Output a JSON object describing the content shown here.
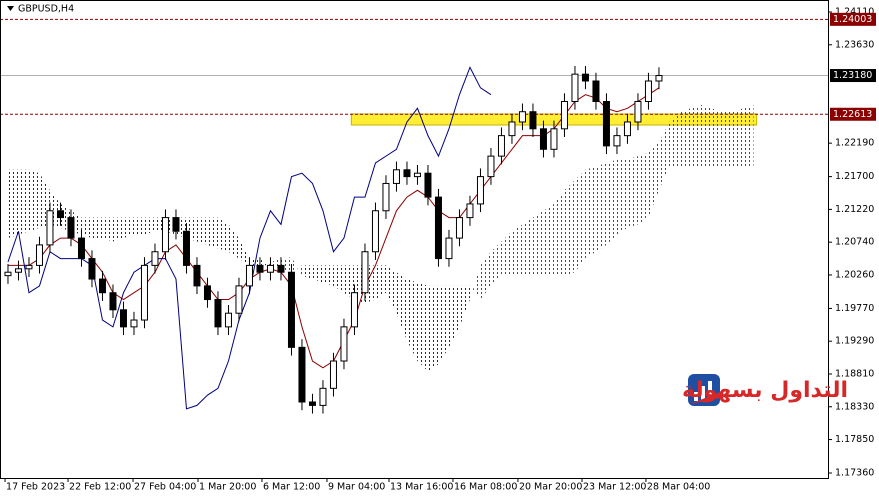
{
  "chart_data": {
    "type": "candlestick",
    "title": "GBPUSD,H4",
    "watermark": "التداول بسهولة",
    "xlim": [
      -0.76,
      78.1
    ],
    "ylim": [
      1.17287,
      1.24286
    ],
    "xticks": [
      {
        "value": -0.28,
        "label": "17 Feb 2023"
      },
      {
        "value": 5.72,
        "label": "22 Feb 12:00"
      },
      {
        "value": 11.91,
        "label": "27 Feb 04:00"
      },
      {
        "value": 18.1,
        "label": "1 Mar 20:00"
      },
      {
        "value": 24.19,
        "label": "6 Mar 12:00"
      },
      {
        "value": 30.38,
        "label": "9 Mar 04:00"
      },
      {
        "value": 36.29,
        "label": "13 Mar 16:00"
      },
      {
        "value": 42.38,
        "label": "16 Mar 08:00"
      },
      {
        "value": 48.57,
        "label": "20 Mar 20:00"
      },
      {
        "value": 54.67,
        "label": "23 Mar 12:00"
      },
      {
        "value": 60.76,
        "label": "28 Mar 04:00"
      }
    ],
    "yticks": [
      {
        "value": 1.2411,
        "label": "1.24110"
      },
      {
        "value": 1.2363,
        "label": "1.23630"
      },
      {
        "value": 1.2219,
        "label": "1.22190"
      },
      {
        "value": 1.217,
        "label": "1.21700"
      },
      {
        "value": 1.2122,
        "label": "1.21220"
      },
      {
        "value": 1.2074,
        "label": "1.20740"
      },
      {
        "value": 1.2026,
        "label": "1.20260"
      },
      {
        "value": 1.1977,
        "label": "1.19770"
      },
      {
        "value": 1.1929,
        "label": "1.19290"
      },
      {
        "value": 1.1881,
        "label": "1.18810"
      },
      {
        "value": 1.1833,
        "label": "1.18330"
      },
      {
        "value": 1.1785,
        "label": "1.17850"
      },
      {
        "value": 1.1736,
        "label": "1.17360"
      }
    ],
    "price_lines": [
      {
        "value": 1.24003,
        "color": "#8b0000",
        "dashed": true
      },
      {
        "value": 1.2318,
        "label": "1.23180",
        "color": "#000000",
        "dashed": false
      },
      {
        "value": 1.22613,
        "color": "#8b0000",
        "dashed": true
      }
    ],
    "zone": {
      "x": [
        32.7,
        71.3
      ],
      "y": [
        1.22456,
        1.22617
      ],
      "color": "#ffee33"
    },
    "candles": {
      "open": [
        1.2025,
        1.203,
        1.2035,
        1.204,
        1.207,
        1.212,
        1.211,
        1.208,
        1.205,
        1.202,
        1.2,
        1.1975,
        1.195,
        1.196,
        1.204,
        1.206,
        1.211,
        1.209,
        1.204,
        1.201,
        1.199,
        1.195,
        1.197,
        1.201,
        1.204,
        1.203,
        1.204,
        1.203,
        1.192,
        1.184,
        1.1835,
        1.186,
        1.19,
        1.195,
        1.2,
        1.206,
        1.212,
        1.216,
        1.218,
        1.217,
        1.2175,
        1.214,
        1.205,
        1.208,
        1.211,
        1.213,
        1.217,
        1.22,
        1.223,
        1.225,
        1.2265,
        1.224,
        1.221,
        1.224,
        1.228,
        1.232,
        1.231,
        1.228,
        1.2215,
        1.223,
        1.225,
        1.228,
        1.231
      ],
      "high": [
        1.2042,
        1.2047,
        1.2052,
        1.2082,
        1.2132,
        1.2132,
        1.2122,
        1.2092,
        1.2062,
        1.2032,
        1.2012,
        1.1987,
        1.1972,
        1.2052,
        1.2072,
        1.2122,
        1.2122,
        1.2102,
        1.2052,
        1.2022,
        1.2002,
        1.1982,
        1.2022,
        1.2052,
        1.2052,
        1.2052,
        1.2052,
        1.2042,
        1.1932,
        1.1852,
        1.1872,
        1.1912,
        1.1962,
        1.2012,
        1.2072,
        1.2132,
        1.2172,
        1.2192,
        1.2192,
        1.2187,
        1.2187,
        1.2152,
        1.2092,
        1.2122,
        1.2142,
        1.2182,
        1.2212,
        1.2242,
        1.2262,
        1.2277,
        1.2277,
        1.2252,
        1.2252,
        1.2292,
        1.2332,
        1.2332,
        1.2322,
        1.2292,
        1.2242,
        1.2262,
        1.2292,
        1.2322,
        1.233
      ],
      "low": [
        1.2013,
        1.2018,
        1.2023,
        1.2028,
        1.2058,
        1.2098,
        1.2068,
        1.2038,
        1.2008,
        1.1988,
        1.1963,
        1.1938,
        1.1938,
        1.1948,
        1.2028,
        1.2048,
        1.2078,
        1.2028,
        1.1998,
        1.1978,
        1.1938,
        1.1938,
        1.1958,
        1.1998,
        1.2018,
        1.2018,
        1.2018,
        1.1908,
        1.1828,
        1.1823,
        1.1823,
        1.1848,
        1.1888,
        1.1938,
        1.1988,
        1.2048,
        1.2108,
        1.2148,
        1.2158,
        1.2158,
        1.2128,
        1.2038,
        1.2038,
        1.2068,
        1.2098,
        1.2118,
        1.2158,
        1.2188,
        1.2218,
        1.2238,
        1.2228,
        1.2198,
        1.2198,
        1.2228,
        1.2268,
        1.2298,
        1.2268,
        1.2203,
        1.2203,
        1.2218,
        1.2238,
        1.2268,
        1.2298
      ],
      "close": [
        1.203,
        1.2035,
        1.204,
        1.207,
        1.212,
        1.211,
        1.208,
        1.205,
        1.202,
        1.2,
        1.1975,
        1.195,
        1.196,
        1.204,
        1.206,
        1.211,
        1.209,
        1.204,
        1.201,
        1.199,
        1.195,
        1.197,
        1.201,
        1.204,
        1.203,
        1.204,
        1.203,
        1.192,
        1.184,
        1.1835,
        1.186,
        1.19,
        1.195,
        1.2,
        1.206,
        1.212,
        1.216,
        1.218,
        1.217,
        1.2175,
        1.214,
        1.205,
        1.208,
        1.211,
        1.213,
        1.217,
        1.22,
        1.223,
        1.225,
        1.2265,
        1.224,
        1.221,
        1.224,
        1.228,
        1.232,
        1.231,
        1.228,
        1.2215,
        1.223,
        1.225,
        1.228,
        1.231,
        1.2318
      ],
      "up_color": "#ffffff",
      "down_color": "#000000"
    },
    "series": [
      {
        "color": "#8b0000",
        "values": [
          1.204,
          1.204,
          1.204,
          1.205,
          1.207,
          1.208,
          1.208,
          1.207,
          1.205,
          1.203,
          1.2,
          1.199,
          1.2,
          1.201,
          1.203,
          1.206,
          1.207,
          1.205,
          1.203,
          1.201,
          1.199,
          1.199,
          1.2,
          1.202,
          1.203,
          1.2035,
          1.203,
          1.201,
          1.195,
          1.19,
          1.189,
          1.19,
          1.193,
          1.196,
          1.201,
          1.204,
          1.208,
          1.212,
          1.214,
          1.215,
          1.214,
          1.212,
          1.211,
          1.211,
          1.213,
          1.215,
          1.217,
          1.219,
          1.221,
          1.223,
          1.223,
          1.223,
          1.224,
          1.226,
          1.228,
          1.229,
          1.2285,
          1.227,
          1.2265,
          1.227,
          1.228,
          1.229,
          1.23
        ]
      },
      {
        "color": "#000080",
        "values": [
          1.2045,
          1.209,
          1.2,
          1.201,
          1.206,
          1.205,
          1.205,
          1.205,
          1.204,
          1.196,
          1.195,
          1.2,
          1.203,
          1.204,
          1.205,
          1.205,
          1.202,
          1.183,
          1.1835,
          1.185,
          1.186,
          1.19,
          1.196,
          1.2,
          1.208,
          1.212,
          1.21,
          1.217,
          1.2175,
          1.216,
          1.212,
          1.206,
          1.208,
          1.214,
          1.214,
          1.219,
          1.22,
          1.221,
          1.225,
          1.227,
          1.223,
          1.22,
          1.224,
          1.229,
          1.233,
          1.23,
          1.229,
          null,
          null,
          null,
          null,
          null,
          null,
          null,
          null,
          null,
          null,
          null,
          null,
          null,
          null,
          null,
          null
        ]
      }
    ],
    "cloud": {
      "up_color": "#008000",
      "down_color": "#8b0000",
      "span_a": [
        1.208,
        1.2085,
        1.209,
        1.2095,
        1.21,
        1.2095,
        1.209,
        1.2085,
        1.208,
        1.208,
        1.2075,
        1.208,
        1.2085,
        1.2085,
        1.209,
        1.209,
        1.2085,
        1.208,
        1.2075,
        1.207,
        1.2065,
        1.206,
        1.205,
        1.204,
        1.2035,
        1.2045,
        1.205,
        1.2052,
        1.2025,
        1.202,
        1.2015,
        1.201,
        1.2,
        1.199,
        1.1985,
        1.199,
        1.2,
        1.197,
        1.193,
        1.19,
        1.1885,
        1.1895,
        1.192,
        1.195,
        1.199,
        1.204,
        1.206,
        1.2075,
        1.209,
        1.21,
        1.211,
        1.212,
        1.213,
        1.215,
        1.2165,
        1.218,
        1.2185,
        1.219,
        1.2195,
        1.2195,
        1.22,
        1.2205,
        1.222,
        1.225,
        1.2265,
        1.227,
        1.2275,
        1.227,
        1.2265,
        1.2265,
        1.227,
        1.2275
      ],
      "span_b": [
        1.218,
        1.218,
        1.218,
        1.2175,
        1.215,
        1.213,
        1.212,
        1.211,
        1.211,
        1.211,
        1.211,
        1.211,
        1.211,
        1.211,
        1.211,
        1.211,
        1.211,
        1.211,
        1.211,
        1.211,
        1.211,
        1.21,
        1.208,
        1.205,
        1.205,
        1.204,
        1.2035,
        1.203,
        1.204,
        1.204,
        1.204,
        1.204,
        1.204,
        1.204,
        1.204,
        1.204,
        1.204,
        1.203,
        1.202,
        1.2015,
        1.201,
        1.201,
        1.201,
        1.201,
        1.201,
        1.199,
        1.201,
        1.2025,
        1.2025,
        1.2025,
        1.2025,
        1.2025,
        1.2025,
        1.2025,
        1.203,
        1.205,
        1.206,
        1.207,
        1.2085,
        1.2095,
        1.21,
        1.211,
        1.215,
        1.2185,
        1.2185,
        1.2185,
        1.2185,
        1.2185,
        1.2185,
        1.2185,
        1.2185,
        1.2185
      ]
    }
  }
}
